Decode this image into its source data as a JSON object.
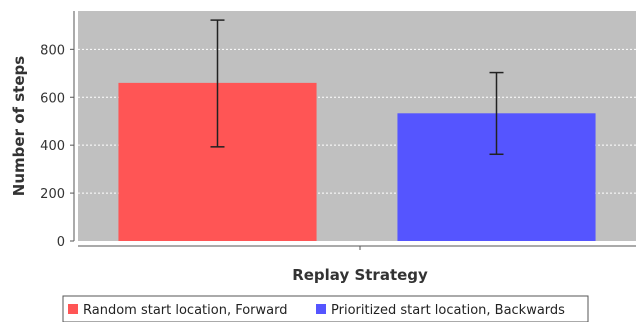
{
  "chart_data": {
    "type": "bar",
    "xlabel": "Replay Strategy",
    "ylabel": "Number of steps",
    "ylim": [
      0,
      960
    ],
    "yticks": [
      0,
      200,
      400,
      600,
      800
    ],
    "grid": true,
    "legend_position": "bottom",
    "plot_background": "#c0c0c0",
    "series": [
      {
        "name": "Random start location, Forward",
        "value": 660,
        "error_low": 393,
        "error_high": 922,
        "color": "#ff5555"
      },
      {
        "name": "Prioritized start location, Backwards",
        "value": 533,
        "error_low": 362,
        "error_high": 703,
        "color": "#5555ff"
      }
    ]
  }
}
